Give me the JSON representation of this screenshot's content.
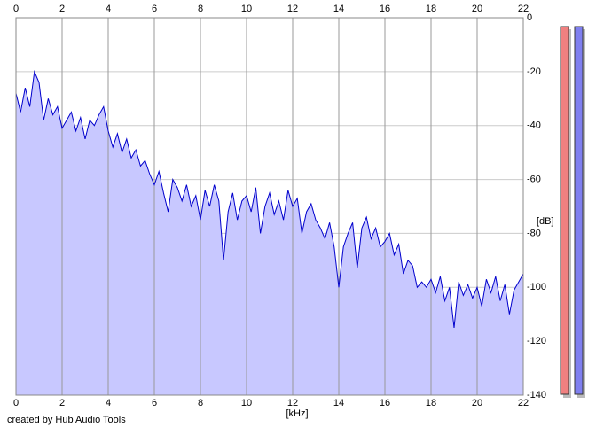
{
  "chart_data": {
    "type": "area",
    "x_label": "[kHz]",
    "y_label": "[dB]",
    "caption": "created by Hub Audio Tools",
    "xlim": [
      0,
      22
    ],
    "xticks": [
      0,
      2,
      4,
      6,
      8,
      10,
      12,
      14,
      16,
      18,
      20,
      22
    ],
    "ylim": [
      -140,
      0
    ],
    "yticks": [
      0,
      -20,
      -40,
      -60,
      -80,
      -100,
      -120,
      -140
    ],
    "grid": true,
    "fill_color": "#c8c8ff",
    "x": [
      0,
      0.2,
      0.4,
      0.6,
      0.8,
      1,
      1.2,
      1.4,
      1.6,
      1.8,
      2,
      2.2,
      2.4,
      2.6,
      2.8,
      3,
      3.2,
      3.4,
      3.6,
      3.8,
      4,
      4.2,
      4.4,
      4.6,
      4.8,
      5,
      5.2,
      5.4,
      5.6,
      5.8,
      6,
      6.2,
      6.4,
      6.6,
      6.8,
      7,
      7.2,
      7.4,
      7.6,
      7.8,
      8,
      8.2,
      8.4,
      8.6,
      8.8,
      9,
      9.2,
      9.4,
      9.6,
      9.8,
      10,
      10.2,
      10.4,
      10.6,
      10.8,
      11,
      11.2,
      11.4,
      11.6,
      11.8,
      12,
      12.2,
      12.4,
      12.6,
      12.8,
      13,
      13.2,
      13.4,
      13.6,
      13.8,
      14,
      14.2,
      14.4,
      14.6,
      14.8,
      15,
      15.2,
      15.4,
      15.6,
      15.8,
      16,
      16.2,
      16.4,
      16.6,
      16.8,
      17,
      17.2,
      17.4,
      17.6,
      17.8,
      18,
      18.2,
      18.4,
      18.6,
      18.8,
      19,
      19.2,
      19.4,
      19.6,
      19.8,
      20,
      20.2,
      20.4,
      20.6,
      20.8,
      21,
      21.2,
      21.4,
      21.6,
      21.8,
      22
    ],
    "series": [
      {
        "color": "#0000cc",
        "values": [
          -28,
          -35,
          -26,
          -33,
          -20,
          -24,
          -38,
          -30,
          -36,
          -33,
          -41,
          -38,
          -35,
          -42,
          -37,
          -45,
          -38,
          -40,
          -36,
          -33,
          -42,
          -48,
          -43,
          -50,
          -45,
          -52,
          -49,
          -55,
          -53,
          -58,
          -62,
          -57,
          -65,
          -72,
          -60,
          -63,
          -68,
          -62,
          -70,
          -66,
          -75,
          -64,
          -70,
          -62,
          -68,
          -90,
          -72,
          -65,
          -75,
          -68,
          -66,
          -72,
          -63,
          -80,
          -70,
          -65,
          -73,
          -68,
          -75,
          -64,
          -70,
          -67,
          -80,
          -72,
          -69,
          -75,
          -78,
          -82,
          -76,
          -85,
          -100,
          -85,
          -80,
          -76,
          -93,
          -78,
          -74,
          -82,
          -78,
          -85,
          -83,
          -80,
          -88,
          -84,
          -95,
          -90,
          -92,
          -100,
          -98,
          -100,
          -97,
          -102,
          -96,
          -105,
          -100,
          -115,
          -98,
          -103,
          -99,
          -104,
          -100,
          -107,
          -97,
          -102,
          -96,
          -105,
          -99,
          -110,
          -101,
          -98,
          -95
        ]
      }
    ]
  }
}
